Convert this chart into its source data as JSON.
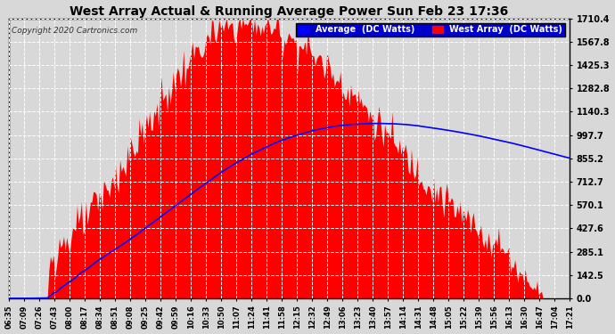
{
  "title": "West Array Actual & Running Average Power Sun Feb 23 17:36",
  "copyright": "Copyright 2020 Cartronics.com",
  "legend_labels": [
    "Average  (DC Watts)",
    "West Array  (DC Watts)"
  ],
  "y_max": 1710.4,
  "y_min": 0.0,
  "y_ticks": [
    0.0,
    142.5,
    285.1,
    427.6,
    570.1,
    712.7,
    855.2,
    997.7,
    1140.3,
    1282.8,
    1425.3,
    1567.8,
    1710.4
  ],
  "background_color": "#d8d8d8",
  "fill_color": "#ff0000",
  "line_color": "#0000ff",
  "grid_color": "#ffffff",
  "title_color": "#000000",
  "x_labels": [
    "06:35",
    "07:09",
    "07:26",
    "07:43",
    "08:00",
    "08:17",
    "08:34",
    "08:51",
    "09:08",
    "09:25",
    "09:42",
    "09:59",
    "10:16",
    "10:33",
    "10:50",
    "11:07",
    "11:24",
    "11:41",
    "11:58",
    "12:15",
    "12:32",
    "12:49",
    "13:06",
    "13:23",
    "13:40",
    "13:57",
    "14:14",
    "14:31",
    "14:48",
    "15:05",
    "15:22",
    "15:39",
    "15:56",
    "16:13",
    "16:30",
    "16:47",
    "17:04",
    "17:21"
  ]
}
